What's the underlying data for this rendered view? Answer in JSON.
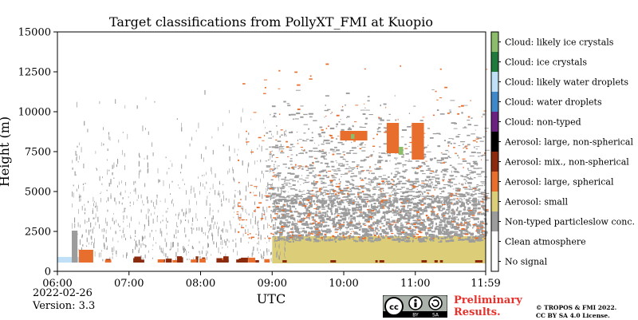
{
  "chart_data": {
    "type": "heatmap",
    "title": "Target classifications from PollyXT_FMI at Kuopio",
    "xlabel": "UTC",
    "ylabel": "Height (m)",
    "x_ticks": [
      "06:00",
      "07:00",
      "08:00",
      "09:00",
      "10:00",
      "11:00",
      "11:59"
    ],
    "x_range_hours": [
      6.0,
      11.983
    ],
    "y_ticks": [
      0,
      2500,
      5000,
      7500,
      10000,
      12500,
      15000
    ],
    "y_range": [
      0,
      15000
    ],
    "legend": {
      "placement": "right",
      "entries": [
        {
          "label": "Cloud: likely ice crystals",
          "color": "#8bbd6b"
        },
        {
          "label": "Cloud: ice crystals",
          "color": "#1f7a3b"
        },
        {
          "label": "Cloud: likely water droplets",
          "color": "#bfe0f7"
        },
        {
          "label": "Cloud: water droplets",
          "color": "#3f88c9"
        },
        {
          "label": "Cloud: non-typed",
          "color": "#6a2180"
        },
        {
          "label": "Aerosol: large, non-spherical",
          "color": "#000000"
        },
        {
          "label": "Aerosol: mix., non-spherical",
          "color": "#8b2a0c"
        },
        {
          "label": "Aerosol: large, spherical",
          "color": "#e86e2d"
        },
        {
          "label": "Aerosol: small",
          "color": "#dccd79"
        },
        {
          "label": "Non-typed particleslow conc.",
          "color": "#9c9c9c"
        },
        {
          "label": "Clean atmosphere",
          "color": "#ffffff"
        },
        {
          "label": "No signal",
          "color": "#ffffff"
        }
      ]
    }
  },
  "footer": {
    "date": "2022-02-26",
    "version": "Version: 3.3",
    "preliminary": [
      "Preliminary",
      "Results."
    ],
    "copyright": [
      "© TROPOS & FMI 2022.",
      "CC BY SA 4.0 License."
    ],
    "license_badge": [
      "BY",
      "SA"
    ]
  }
}
